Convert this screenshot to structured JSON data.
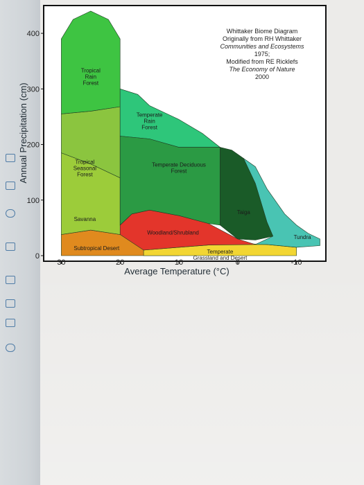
{
  "chart_data": {
    "type": "area",
    "credit": [
      "Whittaker Biome Diagram",
      "Originally from RH Whittaker",
      "Communities and Ecosystems",
      "1975;",
      "Modified from RE Ricklefs",
      "The Economy of Nature",
      "2000"
    ],
    "xlabel": "Average Temperature (°C)",
    "ylabel": "Annual Precipitation (cm)",
    "xlim": [
      33,
      -15
    ],
    "ylim": [
      -10,
      450
    ],
    "x_ticks": [
      {
        "value": 30,
        "label": "30"
      },
      {
        "value": 20,
        "label": "20"
      },
      {
        "value": 10,
        "label": "10"
      },
      {
        "value": 0,
        "label": "0"
      },
      {
        "value": -10,
        "label": "-10"
      }
    ],
    "y_ticks": [
      {
        "value": 0,
        "label": "0"
      },
      {
        "value": 100,
        "label": "100"
      },
      {
        "value": 200,
        "label": "200"
      },
      {
        "value": 300,
        "label": "300"
      },
      {
        "value": 400,
        "label": "400"
      }
    ],
    "biomes": [
      {
        "name": "Subtropical Desert",
        "label_lines": [
          "Subtropical Desert"
        ],
        "color": "#e08a1e",
        "label_at": [
          24,
          10
        ],
        "polygon": [
          [
            30,
            0
          ],
          [
            30,
            38
          ],
          [
            25,
            46
          ],
          [
            20,
            38
          ],
          [
            15,
            25
          ],
          [
            10,
            8
          ],
          [
            10,
            0
          ]
        ]
      },
      {
        "name": "Temperate Grassland and Desert",
        "label_lines": [
          "Temperate",
          "Grassland and Desert"
        ],
        "color": "#f2d633",
        "label_at": [
          3,
          4
        ],
        "polygon": [
          [
            16,
            0
          ],
          [
            16,
            10
          ],
          [
            10,
            15
          ],
          [
            5,
            19
          ],
          [
            0,
            22
          ],
          [
            -5,
            20
          ],
          [
            -10,
            15
          ],
          [
            -10,
            0
          ]
        ]
      },
      {
        "name": "Woodland/Shrubland",
        "label_lines": [
          "Woodland/Shrubland"
        ],
        "color": "#e3352b",
        "label_at": [
          11,
          38
        ],
        "polygon": [
          [
            20,
            38
          ],
          [
            20,
            55
          ],
          [
            18,
            75
          ],
          [
            15,
            82
          ],
          [
            10,
            72
          ],
          [
            5,
            58
          ],
          [
            0,
            30
          ],
          [
            -3,
            20
          ],
          [
            5,
            19
          ],
          [
            10,
            15
          ],
          [
            16,
            10
          ]
        ]
      },
      {
        "name": "Savanna",
        "label_lines": [
          "Savanna"
        ],
        "color": "#9ccc3a",
        "label_at": [
          26,
          62
        ],
        "polygon": [
          [
            30,
            38
          ],
          [
            30,
            185
          ],
          [
            25,
            165
          ],
          [
            20,
            140
          ],
          [
            20,
            38
          ],
          [
            25,
            46
          ]
        ]
      },
      {
        "name": "Tropical Seasonal Forest",
        "label_lines": [
          "Tropical",
          "Seasonal",
          "Forest"
        ],
        "color": "#8bc53f",
        "label_at": [
          26,
          165
        ],
        "polygon": [
          [
            30,
            185
          ],
          [
            30,
            255
          ],
          [
            25,
            260
          ],
          [
            20,
            268
          ],
          [
            20,
            140
          ],
          [
            25,
            165
          ]
        ]
      },
      {
        "name": "Tropical Rain Forest",
        "label_lines": [
          "Tropical",
          "Rain",
          "Forest"
        ],
        "color": "#3ec442",
        "label_at": [
          25,
          330
        ],
        "polygon": [
          [
            30,
            255
          ],
          [
            30,
            390
          ],
          [
            28,
            425
          ],
          [
            25,
            440
          ],
          [
            22,
            425
          ],
          [
            20,
            390
          ],
          [
            20,
            268
          ],
          [
            25,
            260
          ]
        ]
      },
      {
        "name": "Temperate Rain Forest",
        "label_lines": [
          "Temperate",
          "Rain",
          "Forest"
        ],
        "color": "#2ec67a",
        "label_at": [
          15,
          250
        ],
        "polygon": [
          [
            20,
            300
          ],
          [
            17,
            290
          ],
          [
            15,
            270
          ],
          [
            12,
            255
          ],
          [
            10,
            245
          ],
          [
            6,
            220
          ],
          [
            3,
            195
          ],
          [
            10,
            195
          ],
          [
            15,
            210
          ],
          [
            20,
            215
          ]
        ]
      },
      {
        "name": "Temperate Deciduous Forest",
        "label_lines": [
          "Temperate Deciduous",
          "Forest"
        ],
        "color": "#2b9a44",
        "label_at": [
          10,
          160
        ],
        "polygon": [
          [
            20,
            215
          ],
          [
            20,
            200
          ],
          [
            20,
            190
          ],
          [
            20,
            55
          ],
          [
            18,
            75
          ],
          [
            15,
            82
          ],
          [
            10,
            72
          ],
          [
            5,
            58
          ],
          [
            3,
            55
          ],
          [
            3,
            195
          ],
          [
            10,
            195
          ],
          [
            15,
            210
          ]
        ]
      },
      {
        "name": "Taiga",
        "label_lines": [
          "Taiga"
        ],
        "color": "#1a5b28",
        "label_at": [
          -1,
          75
        ],
        "polygon": [
          [
            3,
            195
          ],
          [
            1,
            190
          ],
          [
            -1,
            175
          ],
          [
            -3,
            130
          ],
          [
            -5,
            60
          ],
          [
            -6,
            35
          ],
          [
            -3,
            28
          ],
          [
            0,
            30
          ],
          [
            3,
            55
          ]
        ]
      },
      {
        "name": "Tundra",
        "label_lines": [
          "Tundra"
        ],
        "color": "#49c4b3",
        "label_at": [
          -11,
          30
        ],
        "polygon": [
          [
            -1,
            175
          ],
          [
            -3,
            160
          ],
          [
            -5,
            120
          ],
          [
            -8,
            75
          ],
          [
            -10,
            55
          ],
          [
            -12,
            40
          ],
          [
            -14,
            30
          ],
          [
            -14,
            18
          ],
          [
            -10,
            15
          ],
          [
            -5,
            20
          ],
          [
            -3,
            20
          ],
          [
            -6,
            35
          ],
          [
            -5,
            60
          ],
          [
            -3,
            130
          ]
        ]
      }
    ]
  }
}
